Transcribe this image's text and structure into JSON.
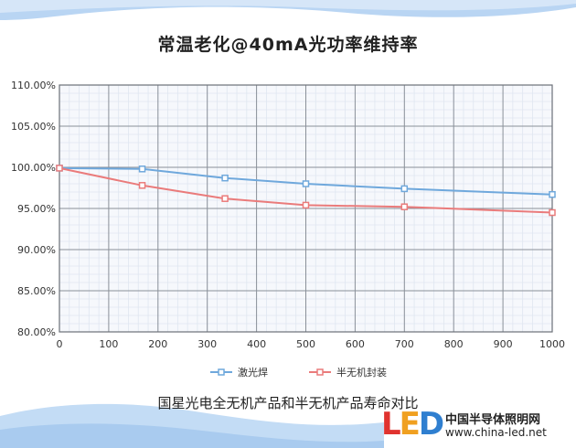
{
  "title": "常温老化@40mA光功率维持率",
  "subtitle": "国星光电全无机产品和半无机产品寿命对比",
  "logo": {
    "mark": "LED",
    "name_cn": "中国半导体照明网",
    "url": "www.china-led.net"
  },
  "colors": {
    "series1": "#6fa8dc",
    "series2": "#ea7b7b",
    "grid": "#8a9099",
    "minor_grid": "#dfe6f0",
    "plot_bg": "#f6f8fc"
  },
  "chart_data": {
    "type": "line",
    "title": "常温老化@40mA光功率维持率",
    "xlabel": "",
    "ylabel": "",
    "xlim": [
      0,
      1000
    ],
    "ylim": [
      80,
      110
    ],
    "x_ticks": [
      "0",
      "100",
      "200",
      "300",
      "400",
      "500",
      "600",
      "700",
      "800",
      "900",
      "1000"
    ],
    "y_ticks": [
      "80.00%",
      "85.00%",
      "90.00%",
      "95.00%",
      "100.00%",
      "105.00%",
      "110.00%"
    ],
    "grid": true,
    "legend_position": "bottom",
    "series": [
      {
        "name": "激光焊",
        "x": [
          0,
          168,
          336,
          500,
          700,
          1000
        ],
        "y": [
          99.9,
          99.8,
          98.7,
          98.0,
          97.4,
          96.7
        ]
      },
      {
        "name": "半无机封装",
        "x": [
          0,
          168,
          336,
          500,
          700,
          1000
        ],
        "y": [
          99.9,
          97.8,
          96.2,
          95.4,
          95.2,
          94.5
        ]
      }
    ]
  }
}
